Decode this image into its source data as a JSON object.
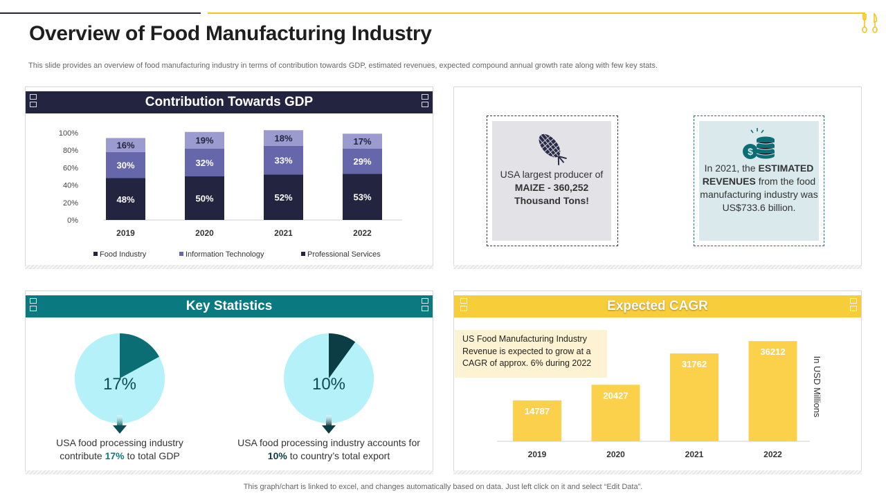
{
  "page": {
    "title": "Overview of Food Manufacturing Industry",
    "subtitle": "This slide provides an overview of food manufacturing industry in terms of contribution towards GDP, estimated revenues, expected  compound annual growth rate along with few key stats.",
    "footer": "This graph/chart is linked to excel, and changes automatically based on data. Just left click on it and select “Edit Data”."
  },
  "colors": {
    "navy": "#23243f",
    "teal": "#0a7a80",
    "yellow": "#f5c518",
    "cagr_header": "#f8cd3a",
    "bar_yellow": "#fbd14b",
    "seg_light": "#9c9bd0",
    "seg_mid": "#6667ab",
    "pie_light": "#b4f1f8",
    "pie_slice1": "#0b6e74",
    "pie_slice2": "#0c3c44"
  },
  "gdp": {
    "header": "Contribution Towards GDP"
  },
  "highlights": {
    "maize_line1": "USA largest producer of",
    "maize_bold": "MAIZE - 360,252 Thousand Tons!",
    "rev_pre": "In 2021, the ",
    "rev_bold": "ESTIMATED REVENUES",
    "rev_post": " from the food manufacturing industry was US$733.6 billion.",
    "maize_icon": "corn-icon",
    "revenue_icon": "coins-dollar-icon"
  },
  "key_stats": {
    "header": "Key Statistics",
    "stat1": {
      "pct_label": "17%",
      "pct_value": 17,
      "text_pre": "USA food processing industry contribute ",
      "text_bold": "17%",
      "text_post": " to total GDP"
    },
    "stat2": {
      "pct_label": "10%",
      "pct_value": 10,
      "text_pre": "USA food processing industry accounts for ",
      "text_bold": "10%",
      "text_post": " to country’s total export"
    }
  },
  "cagr": {
    "header": "Expected CAGR",
    "note": "US Food Manufacturing Industry Revenue is expected to grow at a CAGR of approx. 6% during 2022",
    "unit_label": "In USD Millions"
  },
  "chart_data": [
    {
      "type": "bar",
      "stacked": true,
      "title": "Contribution Towards GDP",
      "categories": [
        "2019",
        "2020",
        "2021",
        "2022"
      ],
      "series": [
        {
          "name": "Food Industry",
          "values": [
            48,
            50,
            52,
            53
          ],
          "labels": [
            "48%",
            "50%",
            "52%",
            "53%"
          ]
        },
        {
          "name": "Information Technology",
          "values": [
            30,
            32,
            33,
            29
          ],
          "labels": [
            "30%",
            "32%",
            "33%",
            "29%"
          ]
        },
        {
          "name": "Professional Services",
          "values": [
            16,
            19,
            18,
            17
          ],
          "labels": [
            "16%",
            "19%",
            "18%",
            "17%"
          ]
        }
      ],
      "ylim": [
        0,
        100
      ],
      "yticks": [
        "0%",
        "20%",
        "40%",
        "60%",
        "80%",
        "100%"
      ],
      "legend": "bottom"
    },
    {
      "type": "bar",
      "title": "Expected CAGR",
      "categories": [
        "2019",
        "2020",
        "2021",
        "2022"
      ],
      "values": [
        14787,
        20427,
        31762,
        36212
      ],
      "labels": [
        "14787",
        "20427",
        "31762",
        "36212"
      ],
      "ylabel": "In USD Millions",
      "ylim": [
        0,
        40000
      ]
    }
  ]
}
